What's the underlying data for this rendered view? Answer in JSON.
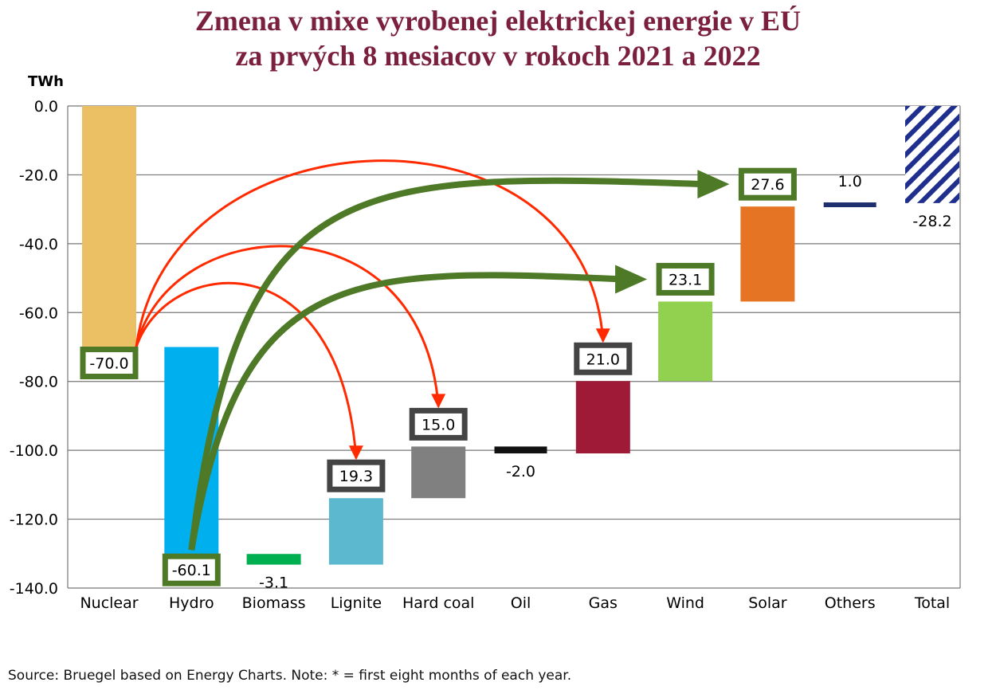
{
  "title_line1": "Zmena v mixe vyrobenej elektrickej energie v EÚ",
  "title_line2": "za prvých 8 mesiacov v rokoch 2021 a 2022",
  "source": "Source: Bruegel based on Energy Charts. Note: * = first eight months of each year.",
  "chart_data": {
    "type": "waterfall",
    "ylabel": "TWh",
    "ylim": [
      -140,
      0
    ],
    "yticks": [
      "0.0",
      "-20.0",
      "-40.0",
      "-60.0",
      "-80.0",
      "-100.0",
      "-120.0",
      "-140.0"
    ],
    "grid": true,
    "categories": [
      "Nuclear",
      "Hydro",
      "Biomass",
      "Lignite",
      "Hard coal",
      "Oil",
      "Gas",
      "Wind",
      "Solar",
      "Others",
      "Total"
    ],
    "values": [
      -70.0,
      -60.1,
      -3.1,
      19.3,
      15.0,
      -2.0,
      21.0,
      23.1,
      27.6,
      1.0,
      -28.2
    ],
    "labels": [
      "-70.0",
      "-60.1",
      "-3.1",
      "19.3",
      "15.0",
      "-2.0",
      "21.0",
      "23.1",
      "27.6",
      "1.0",
      "-28.2"
    ],
    "colors": [
      "#ebbf63",
      "#00b0ee",
      "#00b050",
      "#5cb8cf",
      "#808080",
      "#111111",
      "#9e1a36",
      "#92d050",
      "#e57424",
      "#1f2f6e",
      "#1f2f8e"
    ],
    "label_highlight": [
      "green",
      "green",
      "none",
      "gray",
      "gray",
      "none",
      "gray",
      "green",
      "green",
      "none",
      "none"
    ],
    "total_pattern": "hatched",
    "arrows": [
      {
        "from": "Nuclear",
        "to": "Lignite",
        "color": "#ff2a00"
      },
      {
        "from": "Nuclear",
        "to": "Hard coal",
        "color": "#ff2a00"
      },
      {
        "from": "Nuclear",
        "to": "Gas",
        "color": "#ff2a00"
      },
      {
        "from": "Hydro",
        "to": "Wind",
        "color": "#4e7a27"
      },
      {
        "from": "Hydro",
        "to": "Solar",
        "color": "#4e7a27"
      }
    ]
  }
}
